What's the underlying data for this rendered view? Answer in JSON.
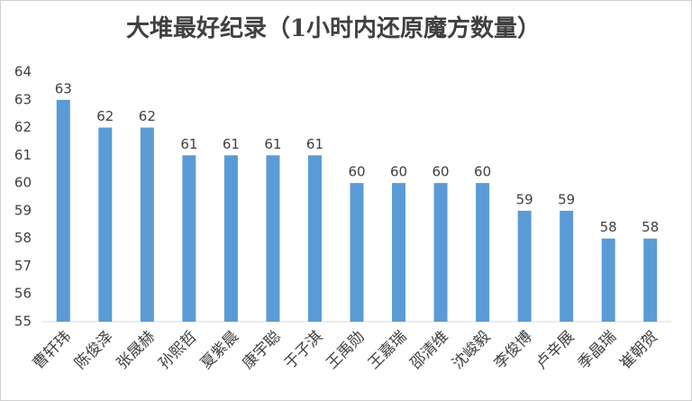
{
  "chart_data": {
    "type": "bar",
    "title": "大堆最好纪录（1小时内还原魔方数量）",
    "categories": [
      "曹轩玮",
      "陈俊泽",
      "张晟赫",
      "孙熙哲",
      "夏紫晨",
      "康宇聪",
      "于子淇",
      "王禹勋",
      "王嘉瑞",
      "邵清维",
      "沈峻毅",
      "李俊博",
      "卢辛展",
      "季晶瑞",
      "崔朝贺"
    ],
    "values": [
      63,
      62,
      62,
      61,
      61,
      61,
      61,
      60,
      60,
      60,
      60,
      59,
      59,
      58,
      58
    ],
    "color": "#5b9bd5",
    "ylim": [
      55,
      64
    ],
    "yticks": [
      55,
      56,
      57,
      58,
      59,
      60,
      61,
      62,
      63,
      64
    ],
    "grid": false,
    "data_labels": true
  }
}
